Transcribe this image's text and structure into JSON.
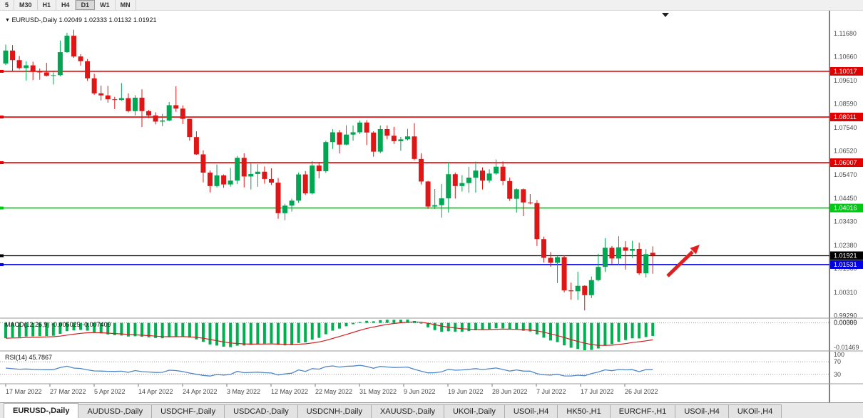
{
  "toolbar": {
    "timeframes": [
      {
        "label": "5",
        "active": false
      },
      {
        "label": "M30",
        "active": false
      },
      {
        "label": "H1",
        "active": false
      },
      {
        "label": "H4",
        "active": false
      },
      {
        "label": "D1",
        "active": true
      },
      {
        "label": "W1",
        "active": false
      },
      {
        "label": "MN",
        "active": false
      }
    ]
  },
  "chart": {
    "title": "EURUSD-,Daily",
    "ohlc_display": "1.02049 1.02333 1.01132 1.01921",
    "colors": {
      "bull": "#00a651",
      "bear": "#e01616",
      "macd_histogram": "#00b050",
      "macd_signal": "#d02020",
      "rsi_line": "#4f86c6",
      "axis_text": "#4a4a4a",
      "arrow": "#e02020",
      "separator": "#9a9a9a",
      "level_dash": "#9a9a9a"
    },
    "price_axis_labels": [
      "1.11680",
      "1.10660",
      "1.09610",
      "1.08590",
      "1.07540",
      "1.06520",
      "1.05470",
      "1.04450",
      "1.03430",
      "1.02380",
      "1.01360",
      "1.00310",
      "0.99290"
    ],
    "hlines": [
      {
        "price": 1.10017,
        "label": "1.10017",
        "color": "#e00000",
        "width": 1.6
      },
      {
        "price": 1.08011,
        "label": "1.08011",
        "color": "#e00000",
        "width": 1.6
      },
      {
        "price": 1.06007,
        "label": "1.06007",
        "color": "#e00000",
        "width": 1.6
      },
      {
        "price": 1.04016,
        "label": "1.04016",
        "color": "#00c814",
        "width": 1.6
      },
      {
        "price": 1.01921,
        "label": "1.01921",
        "color": "#000000",
        "width": 1.2
      },
      {
        "price": 1.01531,
        "label": "1.01531",
        "color": "#0000e0",
        "width": 1.6
      }
    ],
    "date_axis_labels": [
      "17 Mar 2022",
      "27 Mar 2022",
      "5 Apr 2022",
      "14 Apr 2022",
      "24 Apr 2022",
      "3 May 2022",
      "12 May 2022",
      "22 May 2022",
      "31 May 2022",
      "9 Jun 2022",
      "19 Jun 2022",
      "28 Jun 2022",
      "7 Jul 2022",
      "17 Jul 2022",
      "26 Jul 2022"
    ]
  },
  "indicators": {
    "macd": {
      "name": "MACD(12,26,9)",
      "value1": "-0.005025",
      "value2": "-0.007409",
      "params": [
        12,
        26,
        9
      ],
      "axis_labels": [
        "0.00399",
        "0.00000",
        "-0.01469"
      ]
    },
    "rsi": {
      "name": "RSI(14)",
      "value": "45.7867",
      "period": 14,
      "levels": [
        100,
        70,
        30
      ]
    }
  },
  "chart_data": {
    "type": "candlestick",
    "symbol": "EURUSD-",
    "period": "Daily",
    "title": "EURUSD-,Daily 1.02049 1.02333 1.01132 1.01921",
    "ylim": [
      0.9921,
      1.1268
    ],
    "x_labels": [
      "17 Mar 2022",
      "27 Mar 2022",
      "5 Apr 2022",
      "14 Apr 2022",
      "24 Apr 2022",
      "3 May 2022",
      "12 May 2022",
      "22 May 2022",
      "31 May 2022",
      "9 Jun 2022",
      "19 Jun 2022",
      "28 Jun 2022",
      "7 Jul 2022",
      "17 Jul 2022",
      "26 Jul 2022"
    ],
    "dates": [
      "2022-03-17",
      "2022-03-18",
      "2022-03-21",
      "2022-03-22",
      "2022-03-23",
      "2022-03-24",
      "2022-03-25",
      "2022-03-28",
      "2022-03-29",
      "2022-03-30",
      "2022-03-31",
      "2022-04-01",
      "2022-04-04",
      "2022-04-05",
      "2022-04-06",
      "2022-04-07",
      "2022-04-08",
      "2022-04-11",
      "2022-04-12",
      "2022-04-13",
      "2022-04-14",
      "2022-04-15",
      "2022-04-18",
      "2022-04-19",
      "2022-04-20",
      "2022-04-21",
      "2022-04-22",
      "2022-04-25",
      "2022-04-26",
      "2022-04-27",
      "2022-04-28",
      "2022-04-29",
      "2022-05-02",
      "2022-05-03",
      "2022-05-04",
      "2022-05-05",
      "2022-05-06",
      "2022-05-09",
      "2022-05-10",
      "2022-05-11",
      "2022-05-12",
      "2022-05-13",
      "2022-05-16",
      "2022-05-17",
      "2022-05-18",
      "2022-05-19",
      "2022-05-20",
      "2022-05-23",
      "2022-05-24",
      "2022-05-25",
      "2022-05-26",
      "2022-05-27",
      "2022-05-30",
      "2022-05-31",
      "2022-06-01",
      "2022-06-02",
      "2022-06-03",
      "2022-06-06",
      "2022-06-07",
      "2022-06-08",
      "2022-06-09",
      "2022-06-10",
      "2022-06-13",
      "2022-06-14",
      "2022-06-15",
      "2022-06-16",
      "2022-06-17",
      "2022-06-20",
      "2022-06-21",
      "2022-06-22",
      "2022-06-23",
      "2022-06-24",
      "2022-06-27",
      "2022-06-28",
      "2022-06-29",
      "2022-06-30",
      "2022-07-01",
      "2022-07-04",
      "2022-07-05",
      "2022-07-06",
      "2022-07-07",
      "2022-07-08",
      "2022-07-11",
      "2022-07-12",
      "2022-07-13",
      "2022-07-14",
      "2022-07-15",
      "2022-07-18",
      "2022-07-19",
      "2022-07-20",
      "2022-07-21",
      "2022-07-22",
      "2022-07-25",
      "2022-07-26",
      "2022-07-27",
      "2022-07-28"
    ],
    "ohlc": [
      [
        1.1036,
        1.1119,
        1.1029,
        1.1093
      ],
      [
        1.1093,
        1.1117,
        1.1003,
        1.1051
      ],
      [
        1.1051,
        1.1069,
        1.101,
        1.1016
      ],
      [
        1.1016,
        1.1046,
        1.0961,
        1.1028
      ],
      [
        1.1028,
        1.1044,
        1.0963,
        1.1003
      ],
      [
        1.1003,
        1.1014,
        1.0965,
        1.0997
      ],
      [
        1.0997,
        1.1039,
        1.0979,
        1.0982
      ],
      [
        1.0982,
        1.1,
        1.0944,
        1.0985
      ],
      [
        1.0985,
        1.1137,
        1.098,
        1.1086
      ],
      [
        1.1086,
        1.1171,
        1.1082,
        1.1158
      ],
      [
        1.1158,
        1.1184,
        1.1061,
        1.1067
      ],
      [
        1.1067,
        1.1077,
        1.1027,
        1.1046
      ],
      [
        1.1046,
        1.1056,
        1.096,
        1.0971
      ],
      [
        1.0971,
        1.0991,
        1.0899,
        1.0905
      ],
      [
        1.0905,
        1.0939,
        1.0874,
        1.0896
      ],
      [
        1.0896,
        1.0938,
        1.0864,
        1.0879
      ],
      [
        1.0879,
        1.089,
        1.0836,
        1.0876
      ],
      [
        1.0876,
        1.095,
        1.0872,
        1.0884
      ],
      [
        1.0884,
        1.0905,
        1.0821,
        1.0827
      ],
      [
        1.0827,
        1.0897,
        1.0808,
        1.0886
      ],
      [
        1.0886,
        1.0923,
        1.0757,
        1.0827
      ],
      [
        1.0827,
        1.0832,
        1.0796,
        1.0808
      ],
      [
        1.0808,
        1.0822,
        1.0769,
        1.0781
      ],
      [
        1.0781,
        1.0815,
        1.0761,
        1.0786
      ],
      [
        1.0786,
        1.0867,
        1.0783,
        1.0853
      ],
      [
        1.0853,
        1.0936,
        1.0824,
        1.0838
      ],
      [
        1.0838,
        1.0852,
        1.077,
        1.0793
      ],
      [
        1.0793,
        1.0794,
        1.0697,
        1.0713
      ],
      [
        1.0713,
        1.0738,
        1.0635,
        1.0637
      ],
      [
        1.0637,
        1.0655,
        1.0514,
        1.0557
      ],
      [
        1.0557,
        1.0567,
        1.047,
        1.0498
      ],
      [
        1.0498,
        1.0593,
        1.0492,
        1.0545
      ],
      [
        1.0545,
        1.0549,
        1.049,
        1.0505
      ],
      [
        1.0505,
        1.0578,
        1.0495,
        1.0522
      ],
      [
        1.0522,
        1.063,
        1.0507,
        1.0622
      ],
      [
        1.0622,
        1.0642,
        1.0492,
        1.054
      ],
      [
        1.054,
        1.0599,
        1.0483,
        1.0551
      ],
      [
        1.0551,
        1.0594,
        1.0495,
        1.0561
      ],
      [
        1.0561,
        1.0584,
        1.0508,
        1.0529
      ],
      [
        1.0529,
        1.0576,
        1.0503,
        1.0513
      ],
      [
        1.0513,
        1.0533,
        1.0354,
        1.0379
      ],
      [
        1.0379,
        1.042,
        1.0348,
        1.0412
      ],
      [
        1.0412,
        1.0443,
        1.0386,
        1.0434
      ],
      [
        1.0434,
        1.0557,
        1.0424,
        1.0549
      ],
      [
        1.0549,
        1.0564,
        1.0459,
        1.0466
      ],
      [
        1.0466,
        1.0607,
        1.0461,
        1.0588
      ],
      [
        1.0588,
        1.0604,
        1.0532,
        1.0563
      ],
      [
        1.0563,
        1.0697,
        1.0556,
        1.0691
      ],
      [
        1.0691,
        1.0748,
        1.0661,
        1.0734
      ],
      [
        1.0734,
        1.0744,
        1.0641,
        1.068
      ],
      [
        1.068,
        1.0765,
        1.0677,
        1.0724
      ],
      [
        1.0724,
        1.0764,
        1.0697,
        1.0734
      ],
      [
        1.0734,
        1.0786,
        1.0726,
        1.0777
      ],
      [
        1.0777,
        1.0787,
        1.0678,
        1.0733
      ],
      [
        1.0733,
        1.0739,
        1.0627,
        1.0649
      ],
      [
        1.0649,
        1.0764,
        1.0642,
        1.0748
      ],
      [
        1.0748,
        1.0764,
        1.0703,
        1.0719
      ],
      [
        1.0719,
        1.0758,
        1.0683,
        1.0695
      ],
      [
        1.0695,
        1.0714,
        1.0653,
        1.0703
      ],
      [
        1.0703,
        1.0749,
        1.0698,
        1.0716
      ],
      [
        1.0716,
        1.0774,
        1.0611,
        1.0617
      ],
      [
        1.0617,
        1.0642,
        1.0505,
        1.0518
      ],
      [
        1.0518,
        1.0521,
        1.0398,
        1.0408
      ],
      [
        1.0408,
        1.0485,
        1.0397,
        1.0414
      ],
      [
        1.0414,
        1.0507,
        1.0359,
        1.0444
      ],
      [
        1.0444,
        1.0601,
        1.0381,
        1.055
      ],
      [
        1.055,
        1.0557,
        1.0443,
        1.0498
      ],
      [
        1.0498,
        1.0546,
        1.0474,
        1.0511
      ],
      [
        1.0511,
        1.0582,
        1.0469,
        1.0535
      ],
      [
        1.0535,
        1.0605,
        1.0469,
        1.0566
      ],
      [
        1.0566,
        1.058,
        1.0483,
        1.0522
      ],
      [
        1.0522,
        1.0572,
        1.0512,
        1.0553
      ],
      [
        1.0553,
        1.0615,
        1.0547,
        1.0583
      ],
      [
        1.0583,
        1.0606,
        1.0502,
        1.052
      ],
      [
        1.052,
        1.0536,
        1.0433,
        1.0442
      ],
      [
        1.0442,
        1.0488,
        1.0381,
        1.0484
      ],
      [
        1.0484,
        1.0487,
        1.0366,
        1.0426
      ],
      [
        1.0426,
        1.0463,
        1.0418,
        1.0423
      ],
      [
        1.0423,
        1.0436,
        1.0235,
        1.0265
      ],
      [
        1.0265,
        1.0276,
        1.0162,
        1.0183
      ],
      [
        1.0183,
        1.0208,
        1.0144,
        1.0161
      ],
      [
        1.0161,
        1.019,
        1.0072,
        1.0186
      ],
      [
        1.0186,
        1.0193,
        1.0031,
        1.004
      ],
      [
        1.004,
        1.0074,
        0.9999,
        1.0036
      ],
      [
        1.0036,
        1.0122,
        0.9998,
        1.006
      ],
      [
        1.006,
        1.0062,
        0.9952,
        1.0019
      ],
      [
        1.0019,
        1.0101,
        1.0006,
        1.0085
      ],
      [
        1.0085,
        1.0201,
        1.008,
        1.0143
      ],
      [
        1.0143,
        1.0269,
        1.0121,
        1.0227
      ],
      [
        1.0227,
        1.0235,
        1.0155,
        1.018
      ],
      [
        1.018,
        1.0278,
        1.0151,
        1.0229
      ],
      [
        1.0229,
        1.0256,
        1.0131,
        1.0214
      ],
      [
        1.0214,
        1.0258,
        1.0183,
        1.0222
      ],
      [
        1.0222,
        1.0249,
        1.0108,
        1.0115
      ],
      [
        1.0115,
        1.0221,
        1.0097,
        1.0199
      ],
      [
        1.02049,
        1.02333,
        1.01132,
        1.01921
      ]
    ]
  },
  "tabs": [
    {
      "label": "EURUSD-,Daily",
      "active": true
    },
    {
      "label": "AUDUSD-,Daily",
      "active": false
    },
    {
      "label": "USDCHF-,Daily",
      "active": false
    },
    {
      "label": "USDCAD-,Daily",
      "active": false
    },
    {
      "label": "USDCNH-,Daily",
      "active": false
    },
    {
      "label": "XAUUSD-,Daily",
      "active": false
    },
    {
      "label": "UKOil-,Daily",
      "active": false
    },
    {
      "label": "USOil-,H4",
      "active": false
    },
    {
      "label": "HK50-,H1",
      "active": false
    },
    {
      "label": "EURCHF-,H1",
      "active": false
    },
    {
      "label": "USOil-,H4",
      "active": false
    },
    {
      "label": "UKOil-,H4",
      "active": false
    }
  ]
}
